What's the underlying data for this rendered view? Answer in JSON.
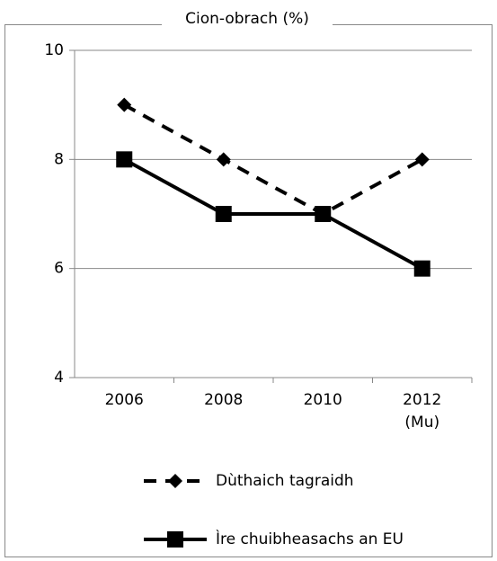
{
  "chart_data": {
    "type": "line",
    "title": "Cion-obrach (%)",
    "categories": [
      "2006",
      "2008",
      "2010",
      "2012\n(Mu)"
    ],
    "series": [
      {
        "name": "Dùthaich tagraidh",
        "color": "#000000",
        "dash": true,
        "marker": "diamond",
        "values": [
          9,
          8,
          7,
          8
        ]
      },
      {
        "name": "Ìre chuibheasachs an EU",
        "color": "#000000",
        "dash": false,
        "marker": "square",
        "values": [
          8,
          7,
          7,
          6
        ]
      }
    ],
    "ylim": [
      4,
      10
    ],
    "yticks": [
      4,
      6,
      8,
      10
    ],
    "grid": true,
    "legend": "bottom"
  }
}
